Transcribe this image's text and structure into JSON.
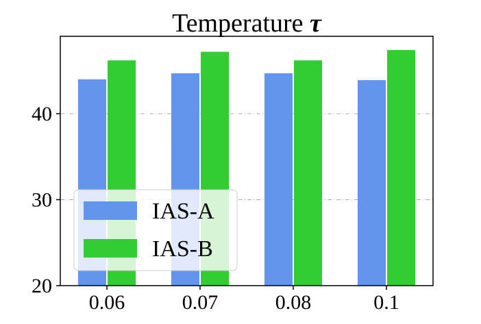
{
  "chart_data": {
    "type": "bar",
    "title": "Temperature",
    "title_symbol": "τ",
    "xlabel": "",
    "ylabel": "",
    "categories": [
      "0.06",
      "0.07",
      "0.08",
      "0.1"
    ],
    "ylim": [
      20,
      49
    ],
    "yticks": [
      20,
      30,
      40
    ],
    "grid": "horizontal dash-dot",
    "legend_position": "lower-left",
    "series": [
      {
        "name": "IAS-A",
        "color": "#6495ED",
        "values": [
          44.0,
          44.7,
          44.7,
          43.9
        ]
      },
      {
        "name": "IAS-B",
        "color": "#32CD32",
        "values": [
          46.2,
          47.2,
          46.2,
          47.4
        ]
      }
    ]
  }
}
